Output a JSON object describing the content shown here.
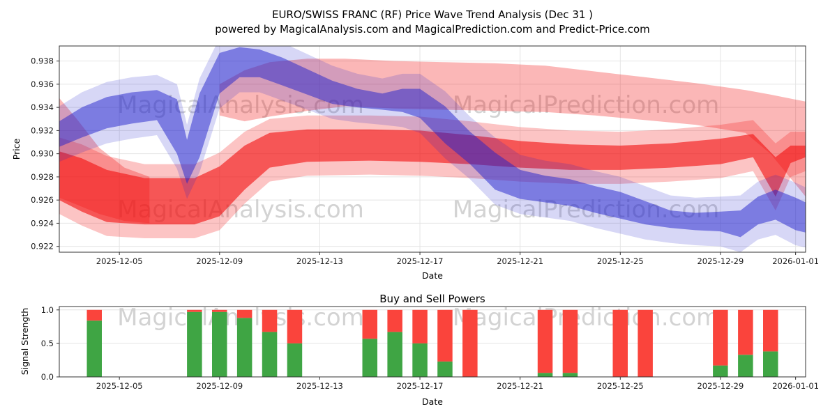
{
  "title": "EURO/SWISS FRANC (RF) Price Wave Trend Analysis (Dec 31 )",
  "subtitle": "powered by MagicalAnalysis.com and MagicalPrediction.com and Predict-Price.com",
  "watermarks": {
    "left": "MagicalAnalysis.com",
    "right": "MagicalPrediction.com"
  },
  "colors": {
    "red_band": "#f21212",
    "blue_band": "#2222cc",
    "bar_green": "#3fa544",
    "bar_red": "#fa443c",
    "grid": "#e4e4e4",
    "axis": "#333333",
    "text": "#1a1a1a",
    "watermark": "#c9c9c9"
  },
  "chart_data": [
    {
      "name": "price_wave_trend",
      "type": "area",
      "ylabel": "Price",
      "xlabel": "Date",
      "x_start_date": "2025-12-03",
      "xlim_days": [
        -0.4,
        29.4
      ],
      "ylim": [
        0.9215,
        0.9393
      ],
      "grid": true,
      "x_ticks": [
        {
          "day": 2,
          "label": "2025-12-05"
        },
        {
          "day": 6,
          "label": "2025-12-09"
        },
        {
          "day": 10,
          "label": "2025-12-13"
        },
        {
          "day": 14,
          "label": "2025-12-17"
        },
        {
          "day": 18,
          "label": "2025-12-21"
        },
        {
          "day": 22,
          "label": "2025-12-25"
        },
        {
          "day": 26,
          "label": "2025-12-29"
        },
        {
          "day": 29,
          "label": "2026-01-01"
        }
      ],
      "y_ticks": [
        {
          "v": 0.922,
          "label": "0.922"
        },
        {
          "v": 0.924,
          "label": "0.924"
        },
        {
          "v": 0.926,
          "label": "0.926"
        },
        {
          "v": 0.928,
          "label": "0.928"
        },
        {
          "v": 0.93,
          "label": "0.930"
        },
        {
          "v": 0.932,
          "label": "0.932"
        },
        {
          "v": 0.934,
          "label": "0.934"
        },
        {
          "v": 0.936,
          "label": "0.936"
        },
        {
          "v": 0.938,
          "label": "0.938"
        }
      ],
      "bands": [
        {
          "id": "red-left-wedge",
          "series": "bearish-forecast-fan",
          "color": "#f21212",
          "opacity": 0.3,
          "points": [
            [
              -0.4,
              0.9262,
              0.9348
            ],
            [
              0.3,
              0.9256,
              0.933
            ],
            [
              1.2,
              0.9248,
              0.9305
            ],
            [
              2.2,
              0.9242,
              0.9288
            ],
            [
              3.2,
              0.924,
              0.928
            ]
          ]
        },
        {
          "id": "red-top-fan",
          "series": "bearish-forecast-fan",
          "color": "#f21212",
          "opacity": 0.3,
          "points": [
            [
              6,
              0.9333,
              0.936
            ],
            [
              7,
              0.9328,
              0.9372
            ],
            [
              8,
              0.9332,
              0.9379
            ],
            [
              9.5,
              0.9337,
              0.9382
            ],
            [
              11,
              0.9341,
              0.9382
            ],
            [
              13,
              0.9339,
              0.938
            ],
            [
              15,
              0.9338,
              0.9379
            ],
            [
              17,
              0.9337,
              0.9378
            ],
            [
              19,
              0.9336,
              0.9376
            ],
            [
              21,
              0.9333,
              0.9371
            ],
            [
              23,
              0.9329,
              0.9366
            ],
            [
              25,
              0.9325,
              0.9361
            ],
            [
              27,
              0.9318,
              0.9355
            ],
            [
              28,
              0.93,
              0.9351
            ],
            [
              29.4,
              0.9263,
              0.9345
            ]
          ]
        },
        {
          "id": "red-main",
          "series": "bearish-wave",
          "color": "#f21212",
          "opacity": 0.62,
          "fuzz": 0.0012,
          "fuzz_opacity": 0.25,
          "points": [
            [
              -0.4,
              0.926,
              0.9302
            ],
            [
              0.5,
              0.925,
              0.9296
            ],
            [
              1.5,
              0.9241,
              0.9286
            ],
            [
              3,
              0.9239,
              0.9279
            ],
            [
              5,
              0.9239,
              0.9279
            ],
            [
              6,
              0.9246,
              0.9289
            ],
            [
              7,
              0.9269,
              0.9307
            ],
            [
              8,
              0.9288,
              0.9318
            ],
            [
              9.5,
              0.9293,
              0.9321
            ],
            [
              12,
              0.9294,
              0.9321
            ],
            [
              14,
              0.9293,
              0.932
            ],
            [
              16,
              0.9291,
              0.9316
            ],
            [
              18,
              0.9288,
              0.9311
            ],
            [
              20,
              0.9286,
              0.9308
            ],
            [
              22,
              0.9286,
              0.9307
            ],
            [
              24,
              0.9288,
              0.9309
            ],
            [
              26,
              0.9291,
              0.9313
            ],
            [
              27.3,
              0.9297,
              0.9317
            ],
            [
              28.2,
              0.9263,
              0.9297
            ],
            [
              28.8,
              0.9292,
              0.9307
            ],
            [
              29.4,
              0.9297,
              0.9307
            ]
          ]
        },
        {
          "id": "blue-main",
          "series": "bullish-wave",
          "color": "#2222cc",
          "opacity": 0.5,
          "fuzz": 0.0013,
          "fuzz_opacity": 0.18,
          "points": [
            [
              -0.4,
              0.9306,
              0.9328
            ],
            [
              0.5,
              0.9314,
              0.934
            ],
            [
              1.5,
              0.9322,
              0.9349
            ],
            [
              2.5,
              0.9326,
              0.9353
            ],
            [
              3.5,
              0.9329,
              0.9355
            ],
            [
              4.3,
              0.93,
              0.9347
            ],
            [
              4.7,
              0.9274,
              0.9312
            ],
            [
              5.2,
              0.9297,
              0.9352
            ],
            [
              6,
              0.9352,
              0.9387
            ],
            [
              6.8,
              0.9366,
              0.9392
            ],
            [
              7.6,
              0.9366,
              0.939
            ],
            [
              8.5,
              0.9359,
              0.9383
            ],
            [
              9.5,
              0.9351,
              0.9373
            ],
            [
              10.5,
              0.9343,
              0.9363
            ],
            [
              11.5,
              0.934,
              0.9356
            ],
            [
              12.5,
              0.9338,
              0.9352
            ],
            [
              13.3,
              0.9336,
              0.9356
            ],
            [
              14,
              0.9331,
              0.9356
            ],
            [
              15,
              0.9309,
              0.9341
            ],
            [
              16,
              0.9291,
              0.9319
            ],
            [
              17,
              0.9269,
              0.9301
            ],
            [
              18,
              0.9261,
              0.9286
            ],
            [
              19,
              0.9258,
              0.9281
            ],
            [
              20,
              0.9255,
              0.9278
            ],
            [
              21,
              0.9249,
              0.9272
            ],
            [
              22,
              0.9244,
              0.9267
            ],
            [
              23,
              0.9239,
              0.9259
            ],
            [
              24,
              0.9236,
              0.9251
            ],
            [
              25,
              0.9234,
              0.9249
            ],
            [
              26,
              0.9233,
              0.925
            ],
            [
              26.8,
              0.9228,
              0.9251
            ],
            [
              27.5,
              0.9239,
              0.9263
            ],
            [
              28.2,
              0.9243,
              0.9269
            ],
            [
              29,
              0.9234,
              0.9262
            ],
            [
              29.4,
              0.9232,
              0.9258
            ]
          ]
        }
      ]
    },
    {
      "name": "buy_sell_powers",
      "type": "bar",
      "title": "Buy and Sell Powers",
      "ylabel": "Signal Strength",
      "xlabel": "Date",
      "stacked": true,
      "legend": "none",
      "bar_width_days": 0.6,
      "xlim_days": [
        -0.4,
        29.4
      ],
      "ylim": [
        0,
        1.05
      ],
      "x_ticks": [
        {
          "day": 2,
          "label": "2025-12-05"
        },
        {
          "day": 6,
          "label": "2025-12-09"
        },
        {
          "day": 10,
          "label": "2025-12-13"
        },
        {
          "day": 14,
          "label": "2025-12-17"
        },
        {
          "day": 18,
          "label": "2025-12-21"
        },
        {
          "day": 22,
          "label": "2025-12-25"
        },
        {
          "day": 26,
          "label": "2025-12-29"
        },
        {
          "day": 29,
          "label": "2026-01-01"
        }
      ],
      "y_ticks": [
        {
          "v": 0,
          "label": "0.0"
        },
        {
          "v": 0.5,
          "label": "0.5"
        },
        {
          "v": 1,
          "label": "1.0"
        }
      ],
      "bars": [
        {
          "date": "2025-12-04",
          "day": 1,
          "buy": 0.84,
          "sell": 0.16
        },
        {
          "date": "2025-12-08",
          "day": 5,
          "buy": 0.97,
          "sell": 0.03
        },
        {
          "date": "2025-12-09",
          "day": 6,
          "buy": 0.97,
          "sell": 0.03
        },
        {
          "date": "2025-12-10",
          "day": 7,
          "buy": 0.88,
          "sell": 0.12
        },
        {
          "date": "2025-12-11",
          "day": 8,
          "buy": 0.67,
          "sell": 0.33
        },
        {
          "date": "2025-12-12",
          "day": 9,
          "buy": 0.5,
          "sell": 0.5
        },
        {
          "date": "2025-12-15",
          "day": 12,
          "buy": 0.57,
          "sell": 0.43
        },
        {
          "date": "2025-12-16",
          "day": 13,
          "buy": 0.67,
          "sell": 0.33
        },
        {
          "date": "2025-12-17",
          "day": 14,
          "buy": 0.5,
          "sell": 0.5
        },
        {
          "date": "2025-12-18",
          "day": 15,
          "buy": 0.23,
          "sell": 0.77
        },
        {
          "date": "2025-12-19",
          "day": 16,
          "buy": 0.0,
          "sell": 1.0
        },
        {
          "date": "2025-12-22",
          "day": 19,
          "buy": 0.06,
          "sell": 0.94
        },
        {
          "date": "2025-12-23",
          "day": 20,
          "buy": 0.06,
          "sell": 0.94
        },
        {
          "date": "2025-12-25",
          "day": 22,
          "buy": 0.0,
          "sell": 1.0
        },
        {
          "date": "2025-12-26",
          "day": 23,
          "buy": 0.0,
          "sell": 1.0
        },
        {
          "date": "2025-12-29",
          "day": 26,
          "buy": 0.17,
          "sell": 0.83
        },
        {
          "date": "2025-12-30",
          "day": 27,
          "buy": 0.33,
          "sell": 0.67
        },
        {
          "date": "2025-12-31",
          "day": 28,
          "buy": 0.38,
          "sell": 0.62
        }
      ]
    }
  ]
}
